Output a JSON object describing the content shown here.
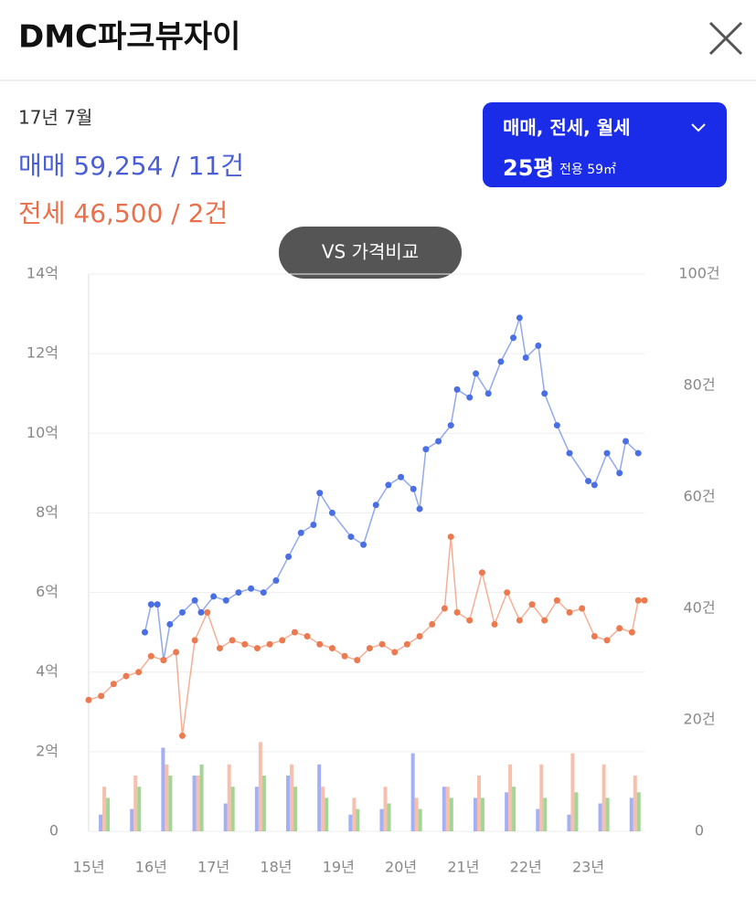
{
  "header": {
    "title": "DMC파크뷰자이"
  },
  "summary": {
    "period": "17년 7월",
    "sale": "매매 59,254 / 11건",
    "jeonse": "전세 46,500 / 2건"
  },
  "filter": {
    "types": "매매, 전세, 월세",
    "size": "25평",
    "area": "전용 59㎡"
  },
  "compare_button": "VS 가격비교",
  "chart_data": {
    "type": "line",
    "xlim": [
      2015,
      2023.9
    ],
    "xticks": [
      {
        "value": 2015,
        "label": "15년"
      },
      {
        "value": 2016,
        "label": "16년"
      },
      {
        "value": 2017,
        "label": "17년"
      },
      {
        "value": 2018,
        "label": "18년"
      },
      {
        "value": 2019,
        "label": "19년"
      },
      {
        "value": 2020,
        "label": "20년"
      },
      {
        "value": 2021,
        "label": "21년"
      },
      {
        "value": 2022,
        "label": "22년"
      },
      {
        "value": 2023,
        "label": "23년"
      }
    ],
    "ylim": [
      0,
      14
    ],
    "yticks": [
      0,
      {
        "value": 2,
        "label": "2억"
      },
      {
        "value": 4,
        "label": "4억"
      },
      {
        "value": 6,
        "label": "6억"
      },
      {
        "value": 8,
        "label": "8억"
      },
      {
        "value": 10,
        "label": "10억"
      },
      {
        "value": 12,
        "label": "12억"
      },
      {
        "value": 14,
        "label": "14억"
      }
    ],
    "y2lim": [
      0,
      100
    ],
    "y2ticks": [
      0,
      {
        "value": 20,
        "label": "20건"
      },
      {
        "value": 40,
        "label": "40건"
      },
      {
        "value": 60,
        "label": "60건"
      },
      {
        "value": 80,
        "label": "80건"
      },
      {
        "value": 100,
        "label": "100건"
      }
    ],
    "grid": true,
    "series": [
      {
        "type": "line",
        "color": "#4a6fe3",
        "x": [
          2015.9,
          2016.0,
          2016.1,
          2016.2,
          2016.3,
          2016.5,
          2016.7,
          2016.8,
          2017.0,
          2017.2,
          2017.4,
          2017.6,
          2017.8,
          2018.0,
          2018.2,
          2018.4,
          2018.6,
          2018.7,
          2018.9,
          2019.2,
          2019.4,
          2019.6,
          2019.8,
          2020.0,
          2020.2,
          2020.3,
          2020.4,
          2020.6,
          2020.8,
          2020.9,
          2021.1,
          2021.2,
          2021.4,
          2021.6,
          2021.8,
          2021.9,
          2022.0,
          2022.2,
          2022.3,
          2022.5,
          2022.7,
          2023.0,
          2023.1,
          2023.3,
          2023.5,
          2023.6,
          2023.8
        ],
        "values": [
          5.0,
          5.7,
          5.7,
          4.3,
          5.2,
          5.5,
          5.8,
          5.5,
          5.9,
          5.8,
          6.0,
          6.1,
          6.0,
          6.3,
          6.9,
          7.5,
          7.7,
          8.5,
          8.0,
          7.4,
          7.2,
          8.2,
          8.7,
          8.9,
          8.6,
          8.1,
          9.6,
          9.8,
          10.2,
          11.1,
          10.9,
          11.5,
          11.0,
          11.8,
          12.4,
          12.9,
          11.9,
          12.2,
          11.0,
          10.2,
          9.5,
          8.8,
          8.7,
          9.5,
          9.0,
          9.8,
          9.5
        ]
      },
      {
        "type": "line",
        "color": "#ec7a50",
        "x": [
          2015.0,
          2015.2,
          2015.4,
          2015.6,
          2015.8,
          2016.0,
          2016.2,
          2016.4,
          2016.5,
          2016.7,
          2016.9,
          2017.1,
          2017.3,
          2017.5,
          2017.7,
          2017.9,
          2018.1,
          2018.3,
          2018.5,
          2018.7,
          2018.9,
          2019.1,
          2019.3,
          2019.5,
          2019.7,
          2019.9,
          2020.1,
          2020.3,
          2020.5,
          2020.7,
          2020.8,
          2020.9,
          2021.1,
          2021.3,
          2021.5,
          2021.7,
          2021.9,
          2022.1,
          2022.3,
          2022.5,
          2022.7,
          2022.9,
          2023.1,
          2023.3,
          2023.5,
          2023.7,
          2023.8,
          2023.9
        ],
        "values": [
          3.3,
          3.4,
          3.7,
          3.9,
          4.0,
          4.4,
          4.3,
          4.5,
          2.4,
          4.8,
          5.5,
          4.6,
          4.8,
          4.7,
          4.6,
          4.7,
          4.8,
          5.0,
          4.9,
          4.7,
          4.6,
          4.4,
          4.3,
          4.6,
          4.7,
          4.5,
          4.7,
          4.9,
          5.2,
          5.6,
          7.4,
          5.5,
          5.3,
          6.5,
          5.2,
          6.0,
          5.3,
          5.7,
          5.3,
          5.8,
          5.5,
          5.6,
          4.9,
          4.8,
          5.1,
          5.0,
          5.8,
          5.8
        ]
      },
      {
        "type": "bar",
        "axis": "y2",
        "color": "#7d8ff0",
        "x": [
          2015.25,
          2015.75,
          2016.25,
          2016.75,
          2017.25,
          2017.75,
          2018.25,
          2018.75,
          2019.25,
          2019.75,
          2020.25,
          2020.75,
          2021.25,
          2021.75,
          2022.25,
          2022.75,
          2023.25,
          2023.75
        ],
        "values": [
          3,
          4,
          15,
          10,
          5,
          8,
          10,
          12,
          3,
          4,
          14,
          8,
          6,
          7,
          4,
          3,
          5,
          6
        ]
      },
      {
        "type": "bar",
        "axis": "y2",
        "color": "#f2a58a",
        "x": [
          2015.25,
          2015.75,
          2016.25,
          2016.75,
          2017.25,
          2017.75,
          2018.25,
          2018.75,
          2019.25,
          2019.75,
          2020.25,
          2020.75,
          2021.25,
          2021.75,
          2022.25,
          2022.75,
          2023.25,
          2023.75
        ],
        "values": [
          8,
          10,
          12,
          10,
          12,
          16,
          12,
          8,
          6,
          8,
          6,
          8,
          10,
          12,
          12,
          14,
          12,
          10
        ]
      },
      {
        "type": "bar",
        "axis": "y2",
        "color": "#7cc36a",
        "x": [
          2015.25,
          2015.75,
          2016.25,
          2016.75,
          2017.25,
          2017.75,
          2018.25,
          2018.75,
          2019.25,
          2019.75,
          2020.25,
          2020.75,
          2021.25,
          2021.75,
          2022.25,
          2022.75,
          2023.25,
          2023.75
        ],
        "values": [
          6,
          8,
          10,
          12,
          8,
          10,
          8,
          6,
          4,
          5,
          4,
          6,
          6,
          8,
          6,
          7,
          6,
          7
        ]
      }
    ]
  }
}
